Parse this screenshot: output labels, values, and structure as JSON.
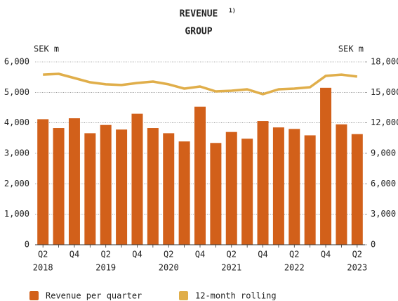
{
  "chart_data": {
    "type": "bar_line",
    "title": "REVENUE",
    "title_note": "1)",
    "subtitle": "GROUP",
    "y_label": "SEK m",
    "y2_label": "SEK m",
    "categories": [
      "Q2",
      null,
      "Q4",
      null,
      "Q2",
      null,
      "Q4",
      null,
      "Q2",
      null,
      "Q4",
      null,
      "Q2",
      null,
      "Q4",
      null,
      "Q2",
      null,
      "Q4",
      null,
      "Q2"
    ],
    "years": [
      "2018",
      null,
      null,
      null,
      "2019",
      null,
      null,
      null,
      "2020",
      null,
      null,
      null,
      "2021",
      null,
      null,
      null,
      "2022",
      null,
      null,
      null,
      "2023"
    ],
    "series": [
      {
        "name": "Revenue per quarter",
        "type": "bar",
        "color": "#d2601a",
        "values": [
          4120,
          3830,
          4150,
          3660,
          3930,
          3780,
          4300,
          3830,
          3660,
          3390,
          4530,
          3340,
          3700,
          3480,
          4060,
          3850,
          3800,
          3590,
          5150,
          3950,
          3630
        ]
      },
      {
        "name": "12-month rolling",
        "type": "line",
        "axis": "y2",
        "color": "#e0ae4a",
        "values": [
          16750,
          16820,
          16410,
          15990,
          15790,
          15720,
          15920,
          16060,
          15790,
          15370,
          15580,
          15090,
          15160,
          15300,
          14820,
          15300,
          15370,
          15510,
          16620,
          16750,
          16550
        ]
      }
    ],
    "ylim": [
      0,
      6000
    ],
    "yticks": [
      0,
      {
        "value": 1000,
        "label": "1,000"
      },
      {
        "value": 2000,
        "label": "2,000"
      },
      {
        "value": 3000,
        "label": "3,000"
      },
      {
        "value": 4000,
        "label": "4,000"
      },
      {
        "value": 5000,
        "label": "5,000"
      },
      {
        "value": 6000,
        "label": "6,000"
      }
    ],
    "y2lim": [
      0,
      18000
    ],
    "y2ticks": [
      0,
      {
        "value": 3000,
        "label": "3,000"
      },
      {
        "value": 6000,
        "label": "6,000"
      },
      {
        "value": 9000,
        "label": "9,000"
      },
      {
        "value": 12000,
        "label": "12,000"
      },
      {
        "value": 15000,
        "label": "15,000"
      },
      {
        "value": 18000,
        "label": "18,000"
      }
    ],
    "grid": true
  }
}
